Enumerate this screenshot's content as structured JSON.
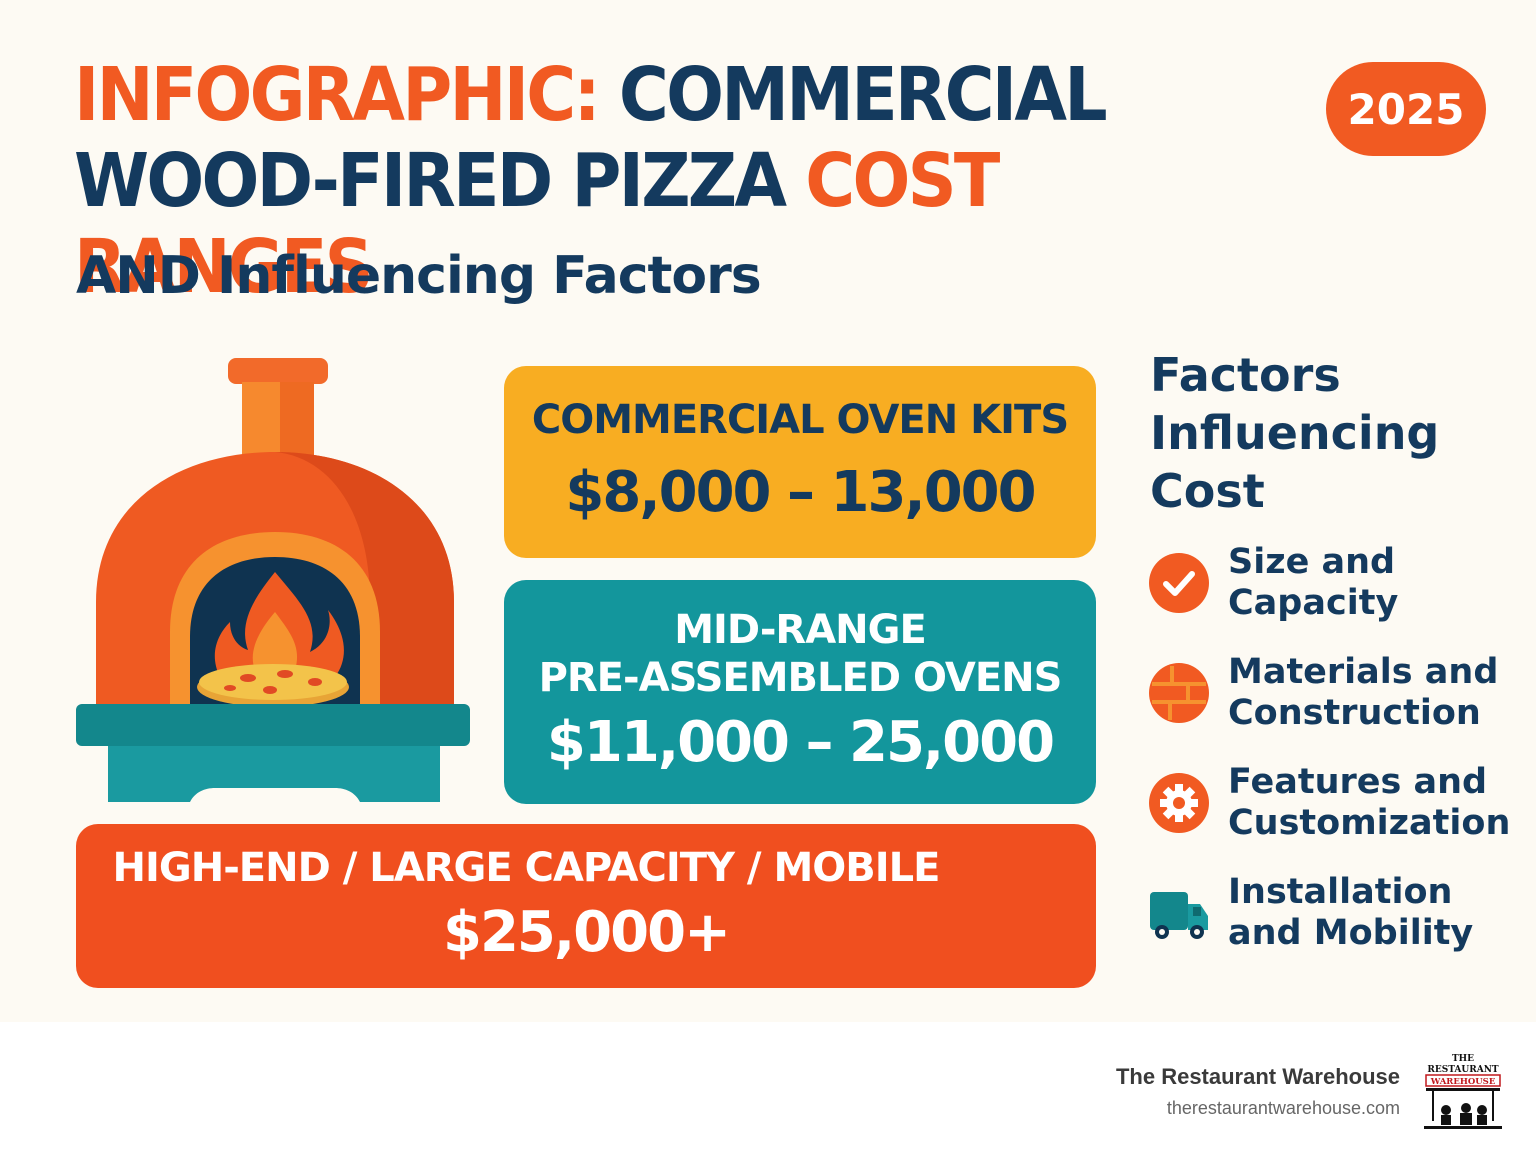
{
  "header": {
    "title_part1": "INFOGRAPHIC:",
    "title_part2": " COMMERCIAL",
    "title_part3": "WOOD-FIRED PIZZA ",
    "title_part4": "COST RANGES",
    "subtitle": "AND Influencing Factors",
    "year": "2025"
  },
  "tiers": [
    {
      "label": "COMMERCIAL OVEN KITS",
      "price": "$8,000 – 13,000"
    },
    {
      "label": "MID-RANGE\nPRE-ASSEMBLED OVENS",
      "label_line1": "MID-RANGE",
      "label_line2": "PRE-ASSEMBLED OVENS",
      "price": "$11,000 – 25,000"
    },
    {
      "label": "HIGH-END / LARGE CAPACITY / MOBILE",
      "price": "$25,000+"
    }
  ],
  "factors": {
    "title": "Factors Influencing Cost",
    "title_line1": "Factors",
    "title_line2": "Influencing",
    "title_line3": "Cost",
    "items": [
      {
        "text": "Size and\nCapacity",
        "icon": "check-icon"
      },
      {
        "text": "Materials and\nConstruction",
        "icon": "brick-icon"
      },
      {
        "text": "Features and\nCustomization",
        "icon": "gear-icon"
      },
      {
        "text": "Installation\nand Mobility",
        "icon": "truck-icon"
      }
    ]
  },
  "footer": {
    "brand": "The Restaurant Warehouse",
    "url": "therestaurantwarehouse.com",
    "logo_text_top": "THE",
    "logo_text_mid": "RESTAURANT",
    "logo_text_bottom": "WAREHOUSE"
  },
  "colors": {
    "orange": "#f15a22",
    "navy": "#143a5e",
    "yellow": "#f8ad22",
    "teal": "#13969c",
    "background": "#fdfaf3"
  }
}
